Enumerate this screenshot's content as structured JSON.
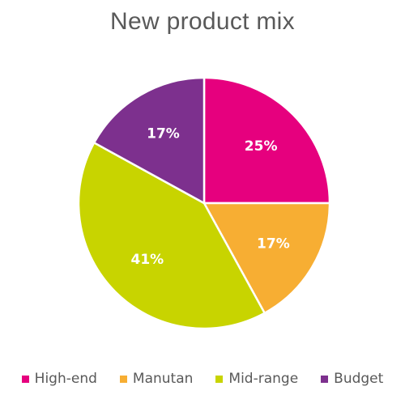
{
  "chart_data": {
    "type": "pie",
    "title": "New product mix",
    "categories": [
      "High-end",
      "Manutan",
      "Mid-range",
      "Budget"
    ],
    "values": [
      25,
      17,
      41,
      17
    ],
    "labels": [
      "25%",
      "17%",
      "41%",
      "17%"
    ],
    "colors": [
      "#e6007e",
      "#f7ae33",
      "#c8d400",
      "#7d308e"
    ],
    "legend_position": "bottom"
  }
}
